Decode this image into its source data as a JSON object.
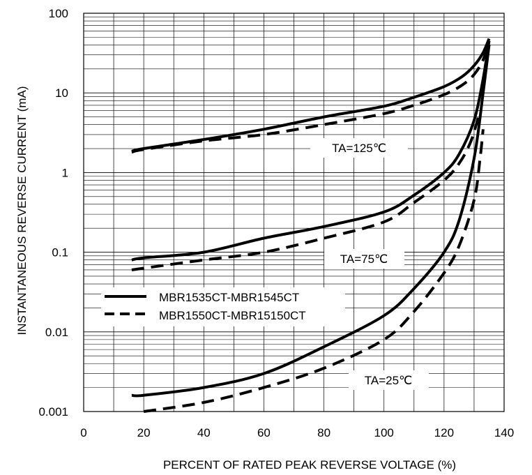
{
  "chart_data": {
    "type": "line",
    "title": "",
    "xlabel": "PERCENT OF RATED PEAK REVERSE VOLTAGE (%)",
    "ylabel": "INSTANTANEOUS REVERSE CURRENT (mA)",
    "xlim": [
      0,
      140
    ],
    "ylim": [
      0.001,
      100
    ],
    "y_scale": "log",
    "grid": true,
    "x_ticks": [
      "0",
      "20",
      "40",
      "60",
      "80",
      "100",
      "120",
      "140"
    ],
    "y_ticks": [
      "0.001",
      "0.01",
      "0.1",
      "1",
      "10",
      "100"
    ],
    "annotations": [
      "TA=125℃",
      "TA=75℃",
      "TA=25℃"
    ],
    "legend": [
      {
        "label": "MBR1535CT-MBR1545CT",
        "style": "solid"
      },
      {
        "label": "MBR1550CT-MBR15150CT",
        "style": "dashed"
      }
    ],
    "series": [
      {
        "group": "MBR1535CT-MBR1545CT",
        "condition": "TA=125℃",
        "style": "solid",
        "x": [
          16,
          20,
          40,
          60,
          80,
          100,
          110,
          120,
          126,
          130,
          133,
          135
        ],
        "y": [
          1.85,
          2.0,
          2.6,
          3.5,
          5.0,
          6.8,
          8.8,
          12,
          16,
          22,
          32,
          48
        ]
      },
      {
        "group": "MBR1550CT-MBR15150CT",
        "condition": "TA=125℃",
        "style": "dashed",
        "x": [
          16,
          20,
          40,
          60,
          80,
          100,
          110,
          120,
          126,
          130,
          133,
          135
        ],
        "y": [
          1.8,
          1.95,
          2.5,
          3.0,
          4.0,
          5.5,
          7.0,
          9.5,
          12.5,
          17,
          26,
          45
        ]
      },
      {
        "group": "MBR1535CT-MBR1545CT",
        "condition": "TA=75℃",
        "style": "solid",
        "x": [
          16,
          20,
          40,
          60,
          80,
          100,
          110,
          120,
          125,
          130,
          133,
          135
        ],
        "y": [
          0.08,
          0.085,
          0.1,
          0.15,
          0.21,
          0.32,
          0.52,
          1.0,
          1.7,
          4.5,
          15,
          45
        ]
      },
      {
        "group": "MBR1550CT-MBR15150CT",
        "condition": "TA=75℃",
        "style": "dashed",
        "x": [
          16,
          20,
          40,
          60,
          80,
          100,
          110,
          120,
          125,
          129,
          132
        ],
        "y": [
          0.06,
          0.063,
          0.08,
          0.1,
          0.15,
          0.24,
          0.42,
          0.8,
          1.3,
          2.5,
          6
        ]
      },
      {
        "group": "MBR1535CT-MBR1545CT",
        "condition": "TA=25℃",
        "style": "solid",
        "x": [
          16,
          20,
          40,
          60,
          80,
          100,
          110,
          120,
          125,
          130,
          133,
          135
        ],
        "y": [
          0.0016,
          0.0016,
          0.002,
          0.003,
          0.0065,
          0.016,
          0.035,
          0.1,
          0.25,
          1.5,
          10,
          40
        ]
      },
      {
        "group": "MBR1550CT-MBR15150CT",
        "condition": "TA=25℃",
        "style": "dashed",
        "x": [
          20,
          40,
          60,
          80,
          100,
          110,
          120,
          125,
          130,
          132,
          133
        ],
        "y": [
          0.001,
          0.0013,
          0.002,
          0.0035,
          0.008,
          0.018,
          0.055,
          0.12,
          0.45,
          1.5,
          3.5
        ]
      }
    ]
  }
}
